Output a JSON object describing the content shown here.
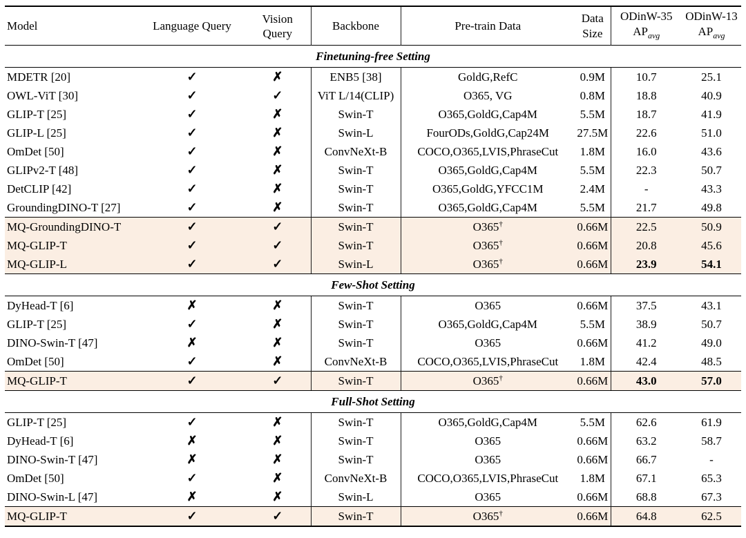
{
  "table": {
    "header": {
      "model": "Model",
      "language_query": "Language Query",
      "vision_query": "Vision Query",
      "backbone": "Backbone",
      "pretrain_data": "Pre-train Data",
      "data_size_l1": "Data",
      "data_size_l2": "Size",
      "odinw35": "ODinW-35",
      "odinw13": "ODinW-13",
      "ap_label": "AP",
      "ap_sub": "avg"
    },
    "icons": {
      "check": "✓",
      "cross": "✗"
    },
    "symbols": {
      "dagger": "†"
    },
    "highlight_color": "#fbeee3",
    "sections": [
      {
        "title": "Finetuning-free Setting",
        "rows": [
          {
            "model": "MDETR [20]",
            "lang": true,
            "vision": false,
            "backbone": "ENB5 [38]",
            "pretrain": "GoldG,RefC",
            "dagger": false,
            "size": "0.9M",
            "ap35": "10.7",
            "ap13": "25.1",
            "highlight": false,
            "bold_ap": false
          },
          {
            "model": "OWL-ViT [30]",
            "lang": true,
            "vision": true,
            "backbone": "ViT L/14(CLIP)",
            "pretrain": "O365, VG",
            "dagger": false,
            "size": "0.8M",
            "ap35": "18.8",
            "ap13": "40.9",
            "highlight": false,
            "bold_ap": false
          },
          {
            "model": "GLIP-T [25]",
            "lang": true,
            "vision": false,
            "backbone": "Swin-T",
            "pretrain": "O365,GoldG,Cap4M",
            "dagger": false,
            "size": "5.5M",
            "ap35": "18.7",
            "ap13": "41.9",
            "highlight": false,
            "bold_ap": false
          },
          {
            "model": "GLIP-L [25]",
            "lang": true,
            "vision": false,
            "backbone": "Swin-L",
            "pretrain": "FourODs,GoldG,Cap24M",
            "dagger": false,
            "size": "27.5M",
            "ap35": "22.6",
            "ap13": "51.0",
            "highlight": false,
            "bold_ap": false
          },
          {
            "model": "OmDet [50]",
            "lang": true,
            "vision": false,
            "backbone": "ConvNeXt-B",
            "pretrain": "COCO,O365,LVIS,PhraseCut",
            "dagger": false,
            "size": "1.8M",
            "ap35": "16.0",
            "ap13": "43.6",
            "highlight": false,
            "bold_ap": false
          },
          {
            "model": "GLIPv2-T [48]",
            "lang": true,
            "vision": false,
            "backbone": "Swin-T",
            "pretrain": "O365,GoldG,Cap4M",
            "dagger": false,
            "size": "5.5M",
            "ap35": "22.3",
            "ap13": "50.7",
            "highlight": false,
            "bold_ap": false
          },
          {
            "model": "DetCLIP [42]",
            "lang": true,
            "vision": false,
            "backbone": "Swin-T",
            "pretrain": "O365,GoldG,YFCC1M",
            "dagger": false,
            "size": "2.4M",
            "ap35": "-",
            "ap13": "43.3",
            "highlight": false,
            "bold_ap": false
          },
          {
            "model": "GroundingDINO-T [27]",
            "lang": true,
            "vision": false,
            "backbone": "Swin-T",
            "pretrain": "O365,GoldG,Cap4M",
            "dagger": false,
            "size": "5.5M",
            "ap35": "21.7",
            "ap13": "49.8",
            "highlight": false,
            "bold_ap": false
          },
          {
            "model": "MQ-GroundingDINO-T",
            "lang": true,
            "vision": true,
            "backbone": "Swin-T",
            "pretrain": "O365",
            "dagger": true,
            "size": "0.66M",
            "ap35": "22.5",
            "ap13": "50.9",
            "highlight": true,
            "bold_ap": false
          },
          {
            "model": "MQ-GLIP-T",
            "lang": true,
            "vision": true,
            "backbone": "Swin-T",
            "pretrain": "O365",
            "dagger": true,
            "size": "0.66M",
            "ap35": "20.8",
            "ap13": "45.6",
            "highlight": true,
            "bold_ap": false
          },
          {
            "model": "MQ-GLIP-L",
            "lang": true,
            "vision": true,
            "backbone": "Swin-L",
            "pretrain": "O365",
            "dagger": true,
            "size": "0.66M",
            "ap35": "23.9",
            "ap13": "54.1",
            "highlight": true,
            "bold_ap": true
          }
        ]
      },
      {
        "title": "Few-Shot Setting",
        "rows": [
          {
            "model": "DyHead-T [6]",
            "lang": false,
            "vision": false,
            "backbone": "Swin-T",
            "pretrain": "O365",
            "dagger": false,
            "size": "0.66M",
            "ap35": "37.5",
            "ap13": "43.1",
            "highlight": false,
            "bold_ap": false
          },
          {
            "model": "GLIP-T [25]",
            "lang": true,
            "vision": false,
            "backbone": "Swin-T",
            "pretrain": "O365,GoldG,Cap4M",
            "dagger": false,
            "size": "5.5M",
            "ap35": "38.9",
            "ap13": "50.7",
            "highlight": false,
            "bold_ap": false
          },
          {
            "model": "DINO-Swin-T [47]",
            "lang": false,
            "vision": false,
            "backbone": "Swin-T",
            "pretrain": "O365",
            "dagger": false,
            "size": "0.66M",
            "ap35": "41.2",
            "ap13": "49.0",
            "highlight": false,
            "bold_ap": false
          },
          {
            "model": "OmDet [50]",
            "lang": true,
            "vision": false,
            "backbone": "ConvNeXt-B",
            "pretrain": "COCO,O365,LVIS,PhraseCut",
            "dagger": false,
            "size": "1.8M",
            "ap35": "42.4",
            "ap13": "48.5",
            "highlight": false,
            "bold_ap": false
          },
          {
            "model": "MQ-GLIP-T",
            "lang": true,
            "vision": true,
            "backbone": "Swin-T",
            "pretrain": "O365",
            "dagger": true,
            "size": "0.66M",
            "ap35": "43.0",
            "ap13": "57.0",
            "highlight": true,
            "bold_ap": true
          }
        ]
      },
      {
        "title": "Full-Shot Setting",
        "rows": [
          {
            "model": "GLIP-T [25]",
            "lang": true,
            "vision": false,
            "backbone": "Swin-T",
            "pretrain": "O365,GoldG,Cap4M",
            "dagger": false,
            "size": "5.5M",
            "ap35": "62.6",
            "ap13": "61.9",
            "highlight": false,
            "bold_ap": false
          },
          {
            "model": "DyHead-T [6]",
            "lang": false,
            "vision": false,
            "backbone": "Swin-T",
            "pretrain": "O365",
            "dagger": false,
            "size": "0.66M",
            "ap35": "63.2",
            "ap13": "58.7",
            "highlight": false,
            "bold_ap": false
          },
          {
            "model": "DINO-Swin-T [47]",
            "lang": false,
            "vision": false,
            "backbone": "Swin-T",
            "pretrain": "O365",
            "dagger": false,
            "size": "0.66M",
            "ap35": "66.7",
            "ap13": "-",
            "highlight": false,
            "bold_ap": false
          },
          {
            "model": "OmDet [50]",
            "lang": true,
            "vision": false,
            "backbone": "ConvNeXt-B",
            "pretrain": "COCO,O365,LVIS,PhraseCut",
            "dagger": false,
            "size": "1.8M",
            "ap35": "67.1",
            "ap13": "65.3",
            "highlight": false,
            "bold_ap": false
          },
          {
            "model": "DINO-Swin-L [47]",
            "lang": false,
            "vision": false,
            "backbone": "Swin-L",
            "pretrain": "O365",
            "dagger": false,
            "size": "0.66M",
            "ap35": "68.8",
            "ap13": "67.3",
            "highlight": false,
            "bold_ap": false
          },
          {
            "model": "MQ-GLIP-T",
            "lang": true,
            "vision": true,
            "backbone": "Swin-T",
            "pretrain": "O365",
            "dagger": true,
            "size": "0.66M",
            "ap35": "64.8",
            "ap13": "62.5",
            "highlight": true,
            "bold_ap": false
          }
        ]
      }
    ]
  }
}
